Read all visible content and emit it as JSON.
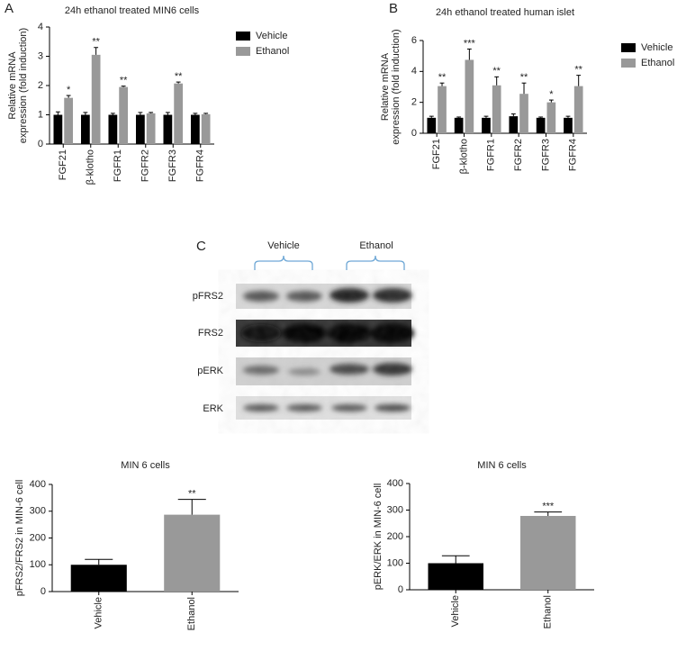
{
  "panel_labels": [
    "A",
    "B",
    "C"
  ],
  "chart_data": [
    {
      "type": "bar",
      "title": "24h ethanol treated MIN6 cells",
      "ylabel": [
        "Relative mRNA",
        "expression (fold induction)"
      ],
      "categories": [
        "FGF21",
        "β-klotho",
        "FGFR1",
        "FGFR2",
        "FGFR3",
        "FGFR4"
      ],
      "series": [
        {
          "name": "Vehicle",
          "color": "#000000",
          "values": [
            1,
            1,
            1,
            1,
            1,
            1
          ],
          "errors": [
            0.1,
            0.08,
            0.05,
            0.08,
            0.08,
            0.05
          ]
        },
        {
          "name": "Ethanol",
          "color": "#999999",
          "values": [
            1.58,
            3.05,
            1.95,
            1.05,
            2.07,
            1.02
          ],
          "errors": [
            0.08,
            0.25,
            0.03,
            0.03,
            0.05,
            0.03
          ]
        }
      ],
      "annotations": [
        "*",
        "**",
        "**",
        null,
        "**",
        null
      ],
      "ylim": [
        0,
        4
      ],
      "yticks": [
        0,
        1,
        2,
        3,
        4
      ],
      "legend": "right"
    },
    {
      "type": "bar",
      "title": "24h ethanol treated human islet",
      "ylabel": [
        "Relative mRNA",
        "expression (fold induction)"
      ],
      "categories": [
        "FGF21",
        "β-klotho",
        "FGFR1",
        "FGFR2",
        "FGFR3",
        "FGFR4"
      ],
      "series": [
        {
          "name": "Vehicle",
          "color": "#000000",
          "values": [
            1,
            1,
            1,
            1.1,
            1,
            1
          ],
          "errors": [
            0.1,
            0.05,
            0.1,
            0.15,
            0.05,
            0.1
          ]
        },
        {
          "name": "Ethanol",
          "color": "#999999",
          "values": [
            3.05,
            4.75,
            3.1,
            2.55,
            2.0,
            3.05
          ],
          "errors": [
            0.2,
            0.7,
            0.55,
            0.7,
            0.15,
            0.7
          ]
        }
      ],
      "annotations": [
        "**",
        "***",
        "**",
        "**",
        "*",
        "**"
      ],
      "ylim": [
        0,
        6
      ],
      "yticks": [
        0,
        2,
        4,
        6
      ],
      "legend": "right"
    },
    {
      "type": "bar",
      "title": "MIN 6 cells",
      "ylabel": "pFRS2/FRS2 in MIN-6 cell",
      "categories": [
        "Vehicle",
        "Ethanol"
      ],
      "values": [
        100,
        287
      ],
      "errors": [
        20,
        57
      ],
      "colors": [
        "#000000",
        "#999999"
      ],
      "annotations": [
        null,
        "**"
      ],
      "ylim": [
        0,
        400
      ],
      "yticks": [
        0,
        100,
        200,
        300,
        400
      ]
    },
    {
      "type": "bar",
      "title": "MIN 6 cells",
      "ylabel": "pERK/ERK in MIN-6 cell",
      "categories": [
        "Vehicle",
        "Ethanol"
      ],
      "values": [
        100,
        278
      ],
      "errors": [
        28,
        15
      ],
      "colors": [
        "#000000",
        "#999999"
      ],
      "annotations": [
        null,
        "***"
      ],
      "ylim": [
        0,
        400
      ],
      "yticks": [
        0,
        100,
        200,
        300,
        400
      ]
    }
  ],
  "blot": {
    "groups": [
      "Vehicle",
      "Ethanol"
    ],
    "rows": [
      "pFRS2",
      "FRS2",
      "pERK",
      "ERK"
    ]
  }
}
